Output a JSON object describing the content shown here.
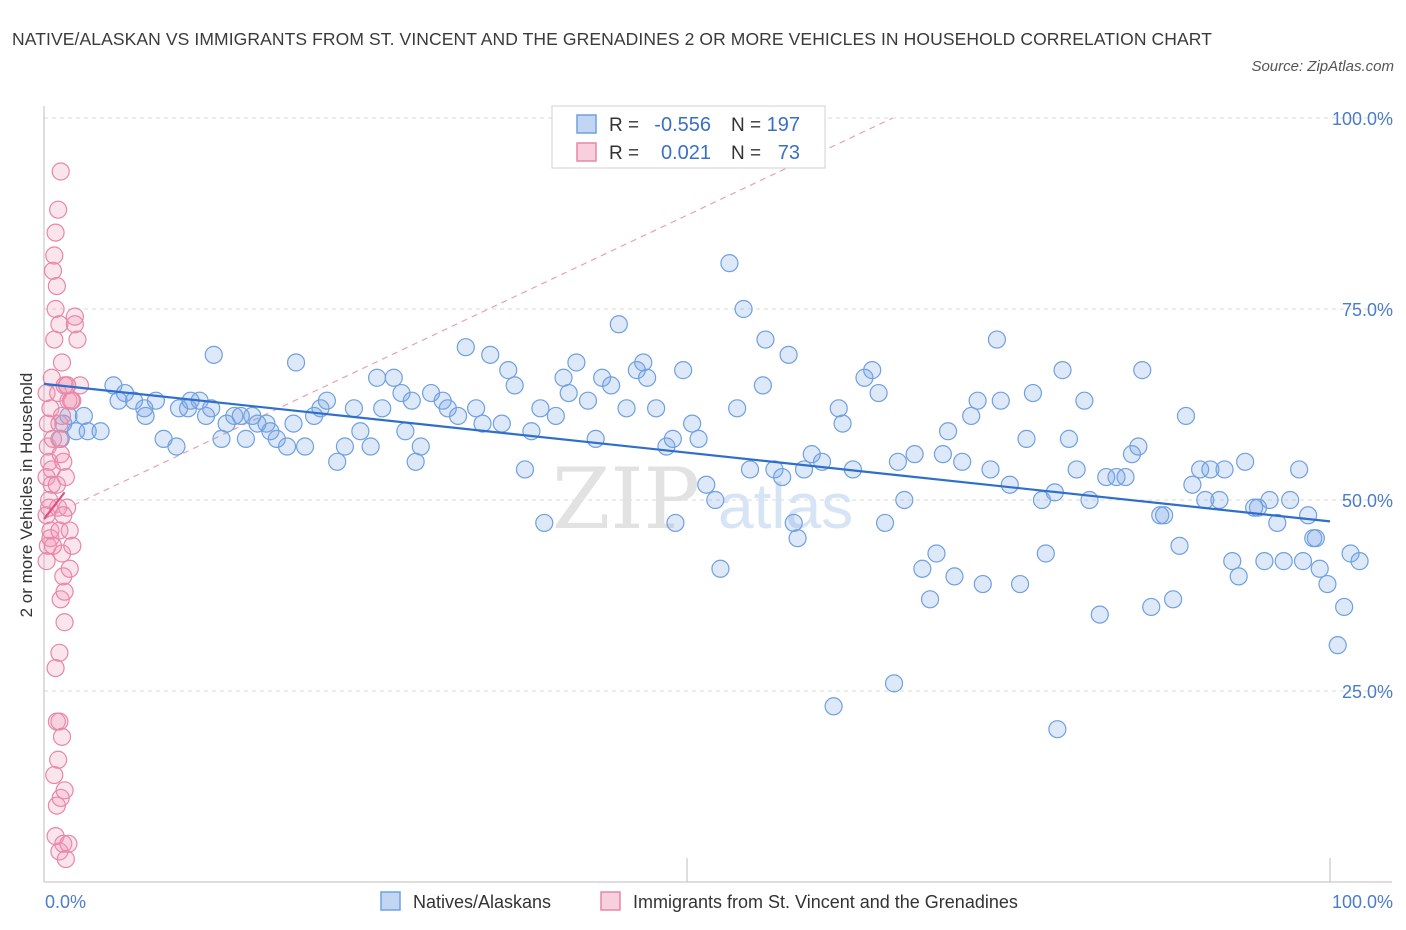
{
  "title": "NATIVE/ALASKAN VS IMMIGRANTS FROM ST. VINCENT AND THE GRENADINES 2 OR MORE VEHICLES IN HOUSEHOLD CORRELATION CHART",
  "source": "Source: ZipAtlas.com",
  "watermark": {
    "zip": "ZIP",
    "atlas": "atlas"
  },
  "colors": {
    "blue": "#6fa0e0",
    "blue_fill": "rgba(120,165,230,0.25)",
    "blue_line": "#2f6fcc",
    "pink": "#e887a6",
    "pink_fill": "rgba(240,150,180,0.25)",
    "pink_line": "#e0507f",
    "grid": "#d8d8d8",
    "tick_text": "#4a7cc9"
  },
  "chart_data": {
    "type": "scatter",
    "xlabel": "",
    "ylabel": "2 or more Vehicles in Household",
    "xlim": [
      0,
      100
    ],
    "ylim": [
      0,
      100
    ],
    "x_tick_labels": [
      "0.0%",
      "100.0%"
    ],
    "y_ticks": [
      25,
      50,
      75,
      100
    ],
    "y_tick_labels": [
      "25.0%",
      "50.0%",
      "75.0%",
      "100.0%"
    ],
    "grid": true,
    "legend": {
      "placement": "top-center",
      "rows": [
        {
          "r_label": "R =",
          "r_value": "-0.556",
          "n_label": "N =",
          "n_value": "197"
        },
        {
          "r_label": "R =",
          "r_value": "0.021",
          "n_label": "N =",
          "n_value": "73"
        }
      ]
    },
    "bottom_legend": [
      "Natives/Alaskans",
      "Immigrants from St. Vincent and the Grenadines"
    ],
    "series": [
      {
        "name": "Natives/Alaskans",
        "trend": {
          "x": [
            0,
            100
          ],
          "y": [
            65.2,
            47.2
          ]
        },
        "points": [
          [
            1.3,
            58
          ],
          [
            1.5,
            60
          ],
          [
            1.9,
            61
          ],
          [
            2.5,
            59
          ],
          [
            3.1,
            61
          ],
          [
            3.4,
            59
          ],
          [
            4.4,
            59
          ],
          [
            5.4,
            65
          ],
          [
            5.8,
            63
          ],
          [
            6.3,
            64
          ],
          [
            7.0,
            63
          ],
          [
            7.8,
            62
          ],
          [
            7.9,
            61
          ],
          [
            8.7,
            63
          ],
          [
            9.3,
            58
          ],
          [
            10.3,
            57
          ],
          [
            10.5,
            62
          ],
          [
            11.2,
            62
          ],
          [
            11.4,
            63
          ],
          [
            12.1,
            63
          ],
          [
            12.6,
            61
          ],
          [
            13.0,
            62
          ],
          [
            13.2,
            69
          ],
          [
            13.8,
            58
          ],
          [
            14.2,
            60
          ],
          [
            14.8,
            61
          ],
          [
            15.3,
            61
          ],
          [
            15.7,
            58
          ],
          [
            16.2,
            61
          ],
          [
            16.6,
            60
          ],
          [
            17.3,
            60
          ],
          [
            17.6,
            59
          ],
          [
            18.1,
            58
          ],
          [
            18.9,
            57
          ],
          [
            19.4,
            60
          ],
          [
            19.6,
            68
          ],
          [
            20.3,
            57
          ],
          [
            21.0,
            61
          ],
          [
            21.5,
            62
          ],
          [
            22.0,
            63
          ],
          [
            22.8,
            55
          ],
          [
            23.4,
            57
          ],
          [
            24.1,
            62
          ],
          [
            24.6,
            59
          ],
          [
            25.4,
            57
          ],
          [
            25.9,
            66
          ],
          [
            26.3,
            62
          ],
          [
            27.2,
            66
          ],
          [
            27.8,
            64
          ],
          [
            28.1,
            59
          ],
          [
            28.6,
            63
          ],
          [
            28.9,
            55
          ],
          [
            29.3,
            57
          ],
          [
            30.1,
            64
          ],
          [
            31.0,
            63
          ],
          [
            31.4,
            62
          ],
          [
            32.2,
            61
          ],
          [
            32.8,
            70
          ],
          [
            33.6,
            62
          ],
          [
            34.1,
            60
          ],
          [
            34.7,
            69
          ],
          [
            35.6,
            60
          ],
          [
            36.1,
            67
          ],
          [
            36.6,
            65
          ],
          [
            37.4,
            54
          ],
          [
            37.9,
            59
          ],
          [
            38.6,
            62
          ],
          [
            38.9,
            47
          ],
          [
            39.8,
            61
          ],
          [
            40.4,
            66
          ],
          [
            40.8,
            64
          ],
          [
            41.4,
            68
          ],
          [
            42.3,
            63
          ],
          [
            42.9,
            58
          ],
          [
            43.4,
            66
          ],
          [
            44.1,
            65
          ],
          [
            44.7,
            73
          ],
          [
            45.3,
            62
          ],
          [
            46.1,
            67
          ],
          [
            46.6,
            68
          ],
          [
            46.9,
            66
          ],
          [
            47.6,
            62
          ],
          [
            48.4,
            57
          ],
          [
            48.9,
            58
          ],
          [
            49.1,
            47
          ],
          [
            49.7,
            67
          ],
          [
            50.4,
            60
          ],
          [
            50.9,
            58
          ],
          [
            51.5,
            52
          ],
          [
            52.2,
            50
          ],
          [
            52.6,
            41
          ],
          [
            53.3,
            81
          ],
          [
            53.9,
            62
          ],
          [
            54.4,
            75
          ],
          [
            54.9,
            54
          ],
          [
            55.9,
            65
          ],
          [
            56.1,
            71
          ],
          [
            56.8,
            54
          ],
          [
            57.4,
            53
          ],
          [
            57.9,
            69
          ],
          [
            58.3,
            47
          ],
          [
            58.6,
            45
          ],
          [
            59.1,
            54
          ],
          [
            59.7,
            56
          ],
          [
            60.5,
            55
          ],
          [
            61.4,
            23
          ],
          [
            61.8,
            62
          ],
          [
            62.1,
            60
          ],
          [
            62.9,
            54
          ],
          [
            63.8,
            66
          ],
          [
            64.4,
            67
          ],
          [
            64.9,
            64
          ],
          [
            65.4,
            47
          ],
          [
            66.1,
            26
          ],
          [
            66.4,
            55
          ],
          [
            66.9,
            50
          ],
          [
            67.7,
            56
          ],
          [
            68.3,
            41
          ],
          [
            68.9,
            37
          ],
          [
            69.4,
            43
          ],
          [
            69.9,
            56
          ],
          [
            70.3,
            59
          ],
          [
            70.8,
            40
          ],
          [
            71.4,
            55
          ],
          [
            72.1,
            61
          ],
          [
            72.6,
            63
          ],
          [
            73.0,
            39
          ],
          [
            73.6,
            54
          ],
          [
            74.1,
            71
          ],
          [
            74.4,
            63
          ],
          [
            75.1,
            52
          ],
          [
            75.9,
            39
          ],
          [
            76.4,
            58
          ],
          [
            76.9,
            64
          ],
          [
            77.6,
            50
          ],
          [
            77.9,
            43
          ],
          [
            78.6,
            51
          ],
          [
            78.8,
            20
          ],
          [
            79.2,
            67
          ],
          [
            79.7,
            58
          ],
          [
            80.3,
            54
          ],
          [
            80.9,
            63
          ],
          [
            81.3,
            50
          ],
          [
            82.1,
            35
          ],
          [
            82.6,
            53
          ],
          [
            83.4,
            53
          ],
          [
            84.1,
            53
          ],
          [
            84.6,
            56
          ],
          [
            85.1,
            57
          ],
          [
            85.4,
            67
          ],
          [
            86.1,
            36
          ],
          [
            86.8,
            48
          ],
          [
            87.1,
            48
          ],
          [
            87.8,
            37
          ],
          [
            88.3,
            44
          ],
          [
            88.8,
            61
          ],
          [
            89.3,
            52
          ],
          [
            89.9,
            54
          ],
          [
            90.3,
            50
          ],
          [
            90.7,
            54
          ],
          [
            91.4,
            50
          ],
          [
            91.8,
            54
          ],
          [
            92.4,
            42
          ],
          [
            92.9,
            40
          ],
          [
            93.4,
            55
          ],
          [
            94.1,
            49
          ],
          [
            94.4,
            49
          ],
          [
            94.9,
            42
          ],
          [
            95.3,
            50
          ],
          [
            95.9,
            47
          ],
          [
            96.4,
            42
          ],
          [
            96.9,
            50
          ],
          [
            97.6,
            54
          ],
          [
            97.9,
            42
          ],
          [
            98.3,
            48
          ],
          [
            98.7,
            45
          ],
          [
            98.9,
            45
          ],
          [
            99.2,
            41
          ],
          [
            99.8,
            39
          ],
          [
            100.6,
            31
          ],
          [
            101.1,
            36
          ],
          [
            101.6,
            43
          ],
          [
            102.3,
            42
          ]
        ]
      },
      {
        "name": "Immigrants from St. Vincent and the Grenadines",
        "trend": {
          "x": [
            0,
            1.6
          ],
          "y": [
            47.5,
            51
          ]
        },
        "trend_dashed": {
          "x": [
            0,
            66
          ],
          "y": [
            47.5,
            100
          ]
        },
        "points": [
          [
            0.2,
            48
          ],
          [
            0.3,
            44
          ],
          [
            0.2,
            53
          ],
          [
            0.4,
            55
          ],
          [
            0.3,
            60
          ],
          [
            0.2,
            64
          ],
          [
            0.5,
            46
          ],
          [
            0.6,
            52
          ],
          [
            0.4,
            50
          ],
          [
            0.3,
            57
          ],
          [
            0.2,
            42
          ],
          [
            0.5,
            45
          ],
          [
            0.4,
            49
          ],
          [
            0.6,
            54
          ],
          [
            0.7,
            58
          ],
          [
            0.5,
            62
          ],
          [
            0.6,
            66
          ],
          [
            0.8,
            71
          ],
          [
            0.9,
            75
          ],
          [
            0.7,
            80
          ],
          [
            0.8,
            82
          ],
          [
            0.9,
            85
          ],
          [
            1.1,
            88
          ],
          [
            1.3,
            93
          ],
          [
            1.0,
            78
          ],
          [
            1.2,
            73
          ],
          [
            1.4,
            68
          ],
          [
            1.1,
            64
          ],
          [
            1.2,
            60
          ],
          [
            1.3,
            56
          ],
          [
            1.0,
            52
          ],
          [
            1.1,
            49
          ],
          [
            1.2,
            46
          ],
          [
            1.4,
            43
          ],
          [
            1.5,
            40
          ],
          [
            1.3,
            37
          ],
          [
            1.6,
            34
          ],
          [
            1.2,
            30
          ],
          [
            0.9,
            28
          ],
          [
            1.0,
            21
          ],
          [
            1.2,
            21
          ],
          [
            1.4,
            19
          ],
          [
            1.1,
            16
          ],
          [
            0.8,
            14
          ],
          [
            1.0,
            10
          ],
          [
            1.3,
            11
          ],
          [
            1.6,
            12
          ],
          [
            0.9,
            6
          ],
          [
            1.2,
            4
          ],
          [
            1.5,
            5
          ],
          [
            1.7,
            3
          ],
          [
            1.9,
            5
          ],
          [
            2.4,
            73
          ],
          [
            2.6,
            71
          ],
          [
            2.8,
            65
          ],
          [
            2.2,
            63
          ],
          [
            1.8,
            65
          ],
          [
            1.9,
            63
          ],
          [
            2.1,
            63
          ],
          [
            1.6,
            65
          ],
          [
            1.4,
            61
          ],
          [
            1.5,
            55
          ],
          [
            1.7,
            53
          ],
          [
            1.8,
            49
          ],
          [
            2.0,
            46
          ],
          [
            2.2,
            44
          ],
          [
            2.0,
            41
          ],
          [
            1.6,
            38
          ],
          [
            2.4,
            74
          ],
          [
            1.8,
            65
          ],
          [
            1.2,
            58
          ],
          [
            1.5,
            48
          ],
          [
            0.7,
            44
          ]
        ]
      }
    ]
  },
  "bottom_legend_labels": [
    "Natives/Alaskans",
    "Immigrants from St. Vincent and the Grenadines"
  ]
}
